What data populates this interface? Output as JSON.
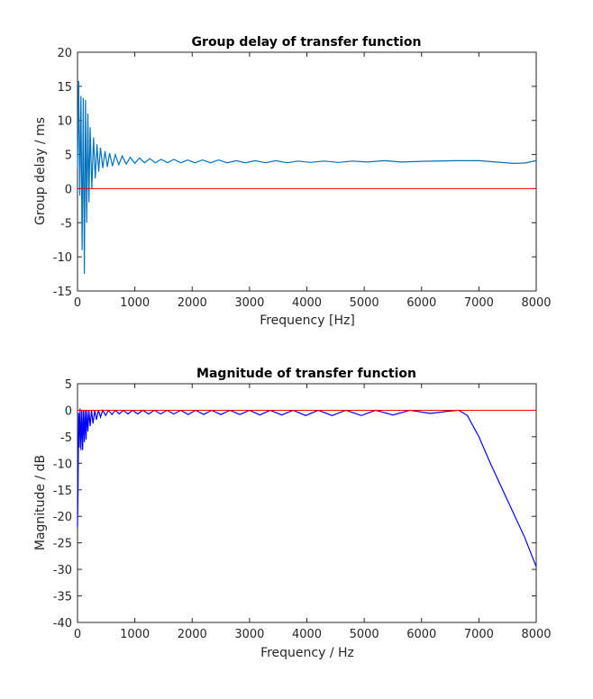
{
  "chart_data": [
    {
      "type": "line",
      "title": "Group delay of transfer function",
      "xlabel": "Frequency [Hz]",
      "ylabel": "Group delay / ms",
      "xlim": [
        0,
        8000
      ],
      "ylim": [
        -15,
        20
      ],
      "xticks": [
        0,
        1000,
        2000,
        3000,
        4000,
        5000,
        6000,
        7000,
        8000
      ],
      "yticks": [
        -15,
        -10,
        -5,
        0,
        5,
        10,
        15,
        20
      ],
      "grid": false,
      "colors": {
        "series": "#0072BD",
        "reference": "#FF0000"
      },
      "reference_line": 0,
      "series": [
        {
          "points": [
            [
              0,
              3
            ],
            [
              20,
              15.8
            ],
            [
              40,
              -1
            ],
            [
              60,
              13.6
            ],
            [
              80,
              -9
            ],
            [
              100,
              13.3
            ],
            [
              120,
              -12.5
            ],
            [
              140,
              13
            ],
            [
              160,
              -5
            ],
            [
              180,
              11
            ],
            [
              200,
              -2
            ],
            [
              220,
              9
            ],
            [
              250,
              0
            ],
            [
              280,
              7.5
            ],
            [
              310,
              1.5
            ],
            [
              340,
              6.5
            ],
            [
              370,
              2.5
            ],
            [
              400,
              6
            ],
            [
              440,
              3
            ],
            [
              480,
              5.5
            ],
            [
              520,
              3.2
            ],
            [
              560,
              5.2
            ],
            [
              610,
              3.3
            ],
            [
              660,
              5
            ],
            [
              720,
              3.5
            ],
            [
              780,
              4.8
            ],
            [
              850,
              3.6
            ],
            [
              920,
              4.6
            ],
            [
              1000,
              3.7
            ],
            [
              1080,
              4.5
            ],
            [
              1170,
              3.8
            ],
            [
              1260,
              4.4
            ],
            [
              1360,
              3.8
            ],
            [
              1460,
              4.3
            ],
            [
              1570,
              3.8
            ],
            [
              1680,
              4.3
            ],
            [
              1800,
              3.8
            ],
            [
              1920,
              4.2
            ],
            [
              2050,
              3.8
            ],
            [
              2180,
              4.2
            ],
            [
              2320,
              3.8
            ],
            [
              2460,
              4.2
            ],
            [
              2610,
              3.8
            ],
            [
              2770,
              4.1
            ],
            [
              2930,
              3.8
            ],
            [
              3100,
              4.1
            ],
            [
              3280,
              3.8
            ],
            [
              3460,
              4.1
            ],
            [
              3650,
              3.8
            ],
            [
              3850,
              4.05
            ],
            [
              4060,
              3.85
            ],
            [
              4300,
              4.05
            ],
            [
              4550,
              3.85
            ],
            [
              4800,
              4.05
            ],
            [
              5050,
              3.9
            ],
            [
              5350,
              4.1
            ],
            [
              5650,
              3.9
            ],
            [
              6000,
              4
            ],
            [
              6600,
              4.1
            ],
            [
              7000,
              4.1
            ],
            [
              7300,
              3.9
            ],
            [
              7600,
              3.7
            ],
            [
              7800,
              3.75
            ],
            [
              8000,
              4.1
            ]
          ]
        }
      ]
    },
    {
      "type": "line",
      "title": "Magnitude of transfer function",
      "xlabel": "Frequency / Hz",
      "ylabel": "Magnitude / dB",
      "xlim": [
        0,
        8000
      ],
      "ylim": [
        -40,
        5
      ],
      "xticks": [
        0,
        1000,
        2000,
        3000,
        4000,
        5000,
        6000,
        7000,
        8000
      ],
      "yticks": [
        -40,
        -35,
        -30,
        -25,
        -20,
        -15,
        -10,
        -5,
        0,
        5
      ],
      "grid": false,
      "colors": {
        "series": "#0000FF",
        "reference": "#FF0000"
      },
      "reference_line": 0,
      "series": [
        {
          "points": [
            [
              0,
              -22
            ],
            [
              10,
              -15
            ],
            [
              20,
              -0.5
            ],
            [
              30,
              -7
            ],
            [
              45,
              0.3
            ],
            [
              60,
              -7.5
            ],
            [
              75,
              0
            ],
            [
              90,
              -7.5
            ],
            [
              105,
              0
            ],
            [
              120,
              -6
            ],
            [
              135,
              0
            ],
            [
              150,
              -5.5
            ],
            [
              165,
              0
            ],
            [
              180,
              -4
            ],
            [
              200,
              0
            ],
            [
              220,
              -3
            ],
            [
              245,
              0
            ],
            [
              270,
              -2.5
            ],
            [
              300,
              0
            ],
            [
              330,
              -1.8
            ],
            [
              365,
              0
            ],
            [
              400,
              -1.3
            ],
            [
              440,
              0
            ],
            [
              490,
              -1
            ],
            [
              540,
              0
            ],
            [
              600,
              -0.8
            ],
            [
              660,
              0
            ],
            [
              730,
              -0.7
            ],
            [
              800,
              0
            ],
            [
              880,
              -0.7
            ],
            [
              960,
              0
            ],
            [
              1050,
              -0.7
            ],
            [
              1140,
              0
            ],
            [
              1240,
              -0.7
            ],
            [
              1340,
              0
            ],
            [
              1450,
              -0.7
            ],
            [
              1560,
              0
            ],
            [
              1680,
              -0.7
            ],
            [
              1800,
              0
            ],
            [
              1930,
              -0.8
            ],
            [
              2060,
              0
            ],
            [
              2200,
              -0.8
            ],
            [
              2340,
              0
            ],
            [
              2500,
              -0.8
            ],
            [
              2660,
              0
            ],
            [
              2830,
              -0.8
            ],
            [
              3000,
              0
            ],
            [
              3180,
              -0.9
            ],
            [
              3360,
              0
            ],
            [
              3560,
              -0.9
            ],
            [
              3760,
              0
            ],
            [
              3980,
              -1
            ],
            [
              4200,
              0
            ],
            [
              4440,
              -1
            ],
            [
              4680,
              0
            ],
            [
              4950,
              -1
            ],
            [
              5200,
              0
            ],
            [
              5500,
              -0.9
            ],
            [
              5800,
              0
            ],
            [
              6150,
              -0.6
            ],
            [
              6450,
              -0.2
            ],
            [
              6650,
              0
            ],
            [
              6800,
              -1
            ],
            [
              7000,
              -5
            ],
            [
              7200,
              -10
            ],
            [
              7500,
              -17
            ],
            [
              7800,
              -24
            ],
            [
              8000,
              -29.5
            ]
          ]
        }
      ]
    }
  ]
}
